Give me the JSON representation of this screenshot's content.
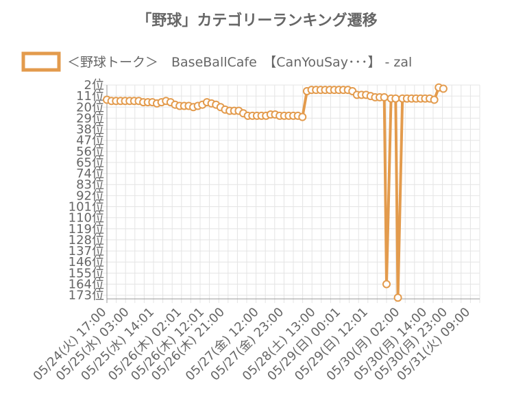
{
  "chart_data": {
    "type": "line",
    "title": "「野球」カテゴリーランキング遷移",
    "legend": {
      "position": "top",
      "label": "＜野球トーク＞　BaseBallCafe　【CanYouSay･･･】 - zal"
    },
    "series_color": "#e39b4d",
    "y_reversed": true,
    "ylim": [
      2,
      176
    ],
    "y_ticks": [
      "2位",
      "11位",
      "20位",
      "29位",
      "38位",
      "47位",
      "56位",
      "65位",
      "74位",
      "83位",
      "92位",
      "101位",
      "110位",
      "119位",
      "128位",
      "137位",
      "146位",
      "155位",
      "164位",
      "173位"
    ],
    "y_tick_values": [
      2,
      11,
      20,
      29,
      38,
      47,
      56,
      65,
      74,
      83,
      92,
      101,
      110,
      119,
      128,
      137,
      146,
      155,
      164,
      173
    ],
    "x_ticks": [
      "05/24(火) 17:00",
      "05/25(水) 03:00",
      "05/25(水) 14:01",
      "05/26(木) 02:01",
      "05/26(木) 12:01",
      "05/26(木) 21:00",
      "05/27(金) 12:00",
      "05/27(金) 23:00",
      "05/28(土) 13:00",
      "05/29(日) 00:01",
      "05/29(日) 12:01",
      "05/30(月) 02:00",
      "05/30(月) 14:00",
      "05/30(月) 23:00",
      "05/31(火) 09:00"
    ],
    "x_tick_positions": [
      0,
      10,
      21,
      33,
      43,
      52,
      67,
      78,
      92,
      103,
      115,
      129,
      141,
      150,
      160
    ],
    "x_max": 164,
    "series": [
      {
        "values": [
          [
            0,
            14
          ],
          [
            2,
            15
          ],
          [
            4,
            15
          ],
          [
            6,
            15
          ],
          [
            8,
            15
          ],
          [
            10,
            15
          ],
          [
            12,
            15
          ],
          [
            14,
            15
          ],
          [
            16,
            16
          ],
          [
            18,
            16
          ],
          [
            20,
            16
          ],
          [
            22,
            17
          ],
          [
            24,
            16
          ],
          [
            26,
            15
          ],
          [
            28,
            16
          ],
          [
            30,
            18
          ],
          [
            32,
            19
          ],
          [
            34,
            19
          ],
          [
            36,
            19
          ],
          [
            38,
            20
          ],
          [
            40,
            19
          ],
          [
            42,
            18
          ],
          [
            44,
            16
          ],
          [
            46,
            17
          ],
          [
            48,
            18
          ],
          [
            50,
            20
          ],
          [
            52,
            22
          ],
          [
            54,
            23
          ],
          [
            56,
            23
          ],
          [
            58,
            23
          ],
          [
            60,
            25
          ],
          [
            62,
            27
          ],
          [
            64,
            27
          ],
          [
            66,
            27
          ],
          [
            68,
            27
          ],
          [
            70,
            27
          ],
          [
            72,
            26
          ],
          [
            74,
            26
          ],
          [
            76,
            27
          ],
          [
            78,
            27
          ],
          [
            80,
            27
          ],
          [
            82,
            27
          ],
          [
            84,
            27
          ],
          [
            86,
            28
          ],
          [
            88,
            7
          ],
          [
            90,
            6
          ],
          [
            92,
            6
          ],
          [
            94,
            6
          ],
          [
            96,
            6
          ],
          [
            98,
            6
          ],
          [
            100,
            6
          ],
          [
            102,
            6
          ],
          [
            104,
            6
          ],
          [
            106,
            6
          ],
          [
            108,
            7
          ],
          [
            110,
            10
          ],
          [
            112,
            10
          ],
          [
            114,
            10
          ],
          [
            116,
            11
          ],
          [
            118,
            12
          ],
          [
            120,
            12
          ],
          [
            122,
            12
          ],
          [
            123,
            164
          ],
          [
            125,
            13
          ],
          [
            127,
            13
          ],
          [
            128,
            175
          ],
          [
            130,
            13
          ],
          [
            132,
            13
          ],
          [
            134,
            13
          ],
          [
            136,
            13
          ],
          [
            138,
            13
          ],
          [
            140,
            13
          ],
          [
            142,
            13
          ],
          [
            144,
            14
          ],
          [
            146,
            4
          ],
          [
            148,
            5
          ]
        ]
      }
    ]
  }
}
